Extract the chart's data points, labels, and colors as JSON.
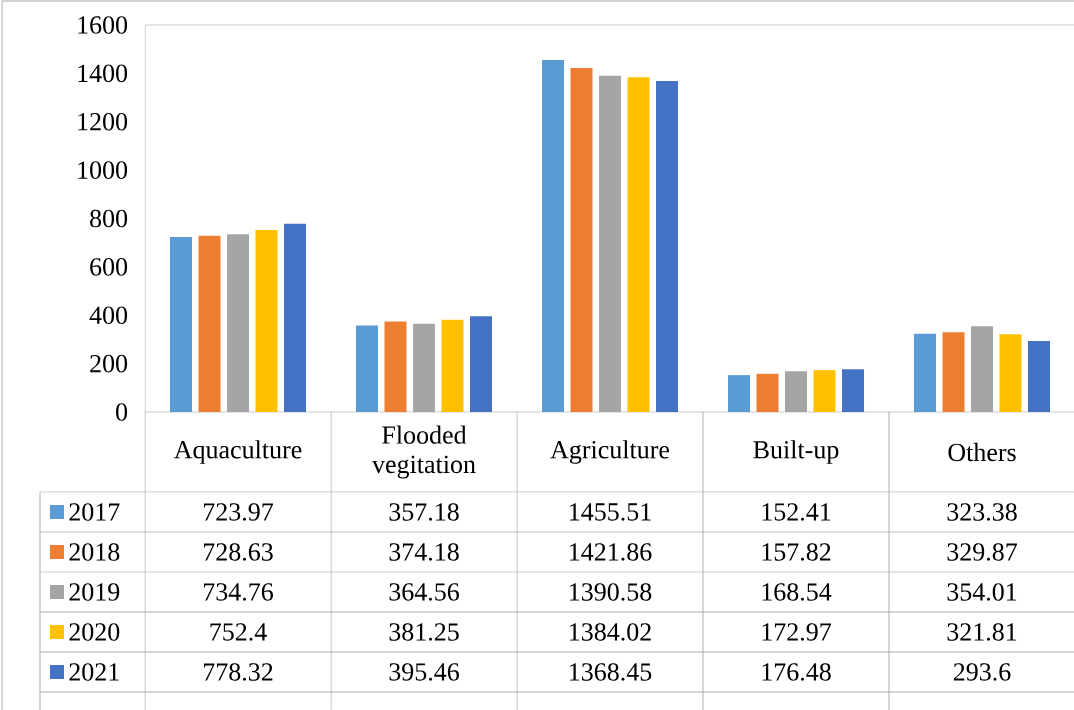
{
  "chart_data": {
    "type": "bar",
    "categories": [
      "Aquaculture",
      "Flooded vegitation",
      "Agriculture",
      "Built-up",
      "Others"
    ],
    "series": [
      {
        "name": "2017",
        "color": "#5b9bd5",
        "values": [
          723.97,
          357.18,
          1455.51,
          152.41,
          323.38
        ]
      },
      {
        "name": "2018",
        "color": "#ed7d31",
        "values": [
          728.63,
          374.18,
          1421.86,
          157.82,
          329.87
        ]
      },
      {
        "name": "2019",
        "color": "#a5a5a5",
        "values": [
          734.76,
          364.56,
          1390.58,
          168.54,
          354.01
        ]
      },
      {
        "name": "2020",
        "color": "#ffc000",
        "values": [
          752.4,
          381.25,
          1384.02,
          172.97,
          321.81
        ]
      },
      {
        "name": "2021",
        "color": "#4472c4",
        "values": [
          778.32,
          395.46,
          1368.45,
          176.48,
          293.6
        ]
      }
    ],
    "ylim": [
      0,
      1600
    ],
    "yticks": [
      0,
      200,
      400,
      600,
      800,
      1000,
      1200,
      1400,
      1600
    ],
    "data_labels": true,
    "legend": "bottom"
  }
}
